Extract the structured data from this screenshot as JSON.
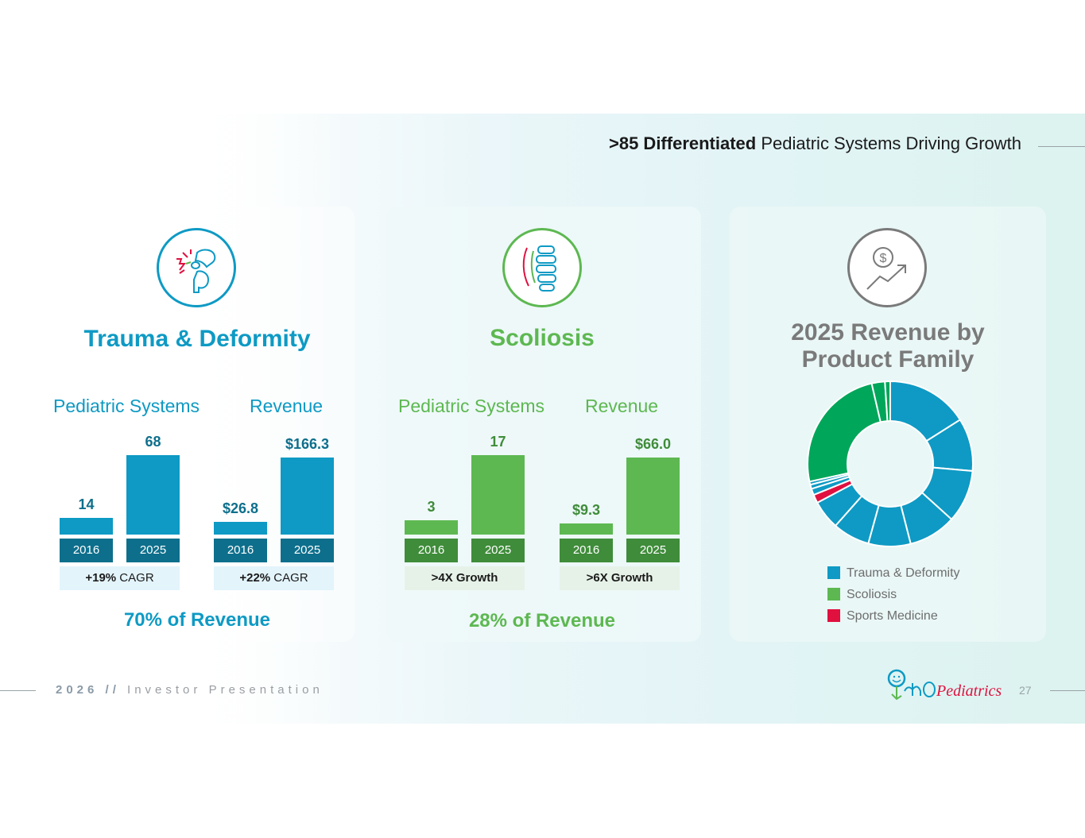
{
  "title": {
    "bold": ">85 Differentiated",
    "rest": " Pediatric Systems Driving Growth"
  },
  "colors": {
    "trauma": "#0e9ac4",
    "trauma_dark": "#0d6f8c",
    "scoliosis": "#5db851",
    "scoliosis_dark": "#3f8c3a",
    "sports": "#e0103f",
    "scoliosis_donut": "#00a65a",
    "grey": "#7a7a7a"
  },
  "trauma": {
    "title": "Trauma & Deformity",
    "icon": "broken-bone-icon",
    "systems_label": "Pediatric Systems",
    "revenue_label": "Revenue",
    "systems_tag_bold": "+19%",
    "systems_tag_rest": " CAGR",
    "revenue_tag_bold": "+22%",
    "revenue_tag_rest": " CAGR",
    "share": "70% of Revenue"
  },
  "scoliosis": {
    "title": "Scoliosis",
    "icon": "spine-icon",
    "systems_label": "Pediatric Systems",
    "revenue_label": "Revenue",
    "systems_tag_bold": ">4X Growth",
    "revenue_tag_bold": ">6X Growth",
    "share": "28% of Revenue"
  },
  "donut": {
    "icon": "dollar-growth-icon",
    "title": "2025 Revenue by Product Family",
    "legend": [
      {
        "label": "Trauma & Deformity",
        "color": "#0e9ac4"
      },
      {
        "label": "Scoliosis",
        "color": "#5db851"
      },
      {
        "label": "Sports Medicine",
        "color": "#e0103f"
      }
    ]
  },
  "chart_data": [
    {
      "type": "bar",
      "name": "trauma-systems",
      "categories": [
        "2016",
        "2025"
      ],
      "values": [
        14,
        68
      ],
      "value_labels": [
        "14",
        "68"
      ]
    },
    {
      "type": "bar",
      "name": "trauma-revenue",
      "categories": [
        "2016",
        "2025"
      ],
      "values": [
        26.8,
        166.3
      ],
      "value_labels": [
        "$26.8",
        "$166.3"
      ]
    },
    {
      "type": "bar",
      "name": "scoliosis-systems",
      "categories": [
        "2016",
        "2025"
      ],
      "values": [
        3,
        17
      ],
      "value_labels": [
        "3",
        "17"
      ]
    },
    {
      "type": "bar",
      "name": "scoliosis-revenue",
      "categories": [
        "2016",
        "2025"
      ],
      "values": [
        9.3,
        66.0
      ],
      "value_labels": [
        "$9.3",
        "$66.0"
      ]
    },
    {
      "type": "pie",
      "name": "revenue-by-product-family",
      "slices": [
        {
          "family": "Trauma & Deformity",
          "value": 15.5,
          "color": "#0e9ac4"
        },
        {
          "family": "Trauma & Deformity",
          "value": 10,
          "color": "#0e9ac4"
        },
        {
          "family": "Trauma & Deformity",
          "value": 10,
          "color": "#0e9ac4"
        },
        {
          "family": "Trauma & Deformity",
          "value": 9,
          "color": "#0e9ac4"
        },
        {
          "family": "Trauma & Deformity",
          "value": 8,
          "color": "#0e9ac4"
        },
        {
          "family": "Trauma & Deformity",
          "value": 7,
          "color": "#0e9ac4"
        },
        {
          "family": "Trauma & Deformity",
          "value": 5.5,
          "color": "#0e9ac4"
        },
        {
          "family": "Sports Medicine",
          "value": 1.6,
          "color": "#e0103f"
        },
        {
          "family": "Trauma & Deformity",
          "value": 1.2,
          "color": "#0e9ac4"
        },
        {
          "family": "Trauma & Deformity",
          "value": 0.8,
          "color": "#0e9ac4"
        },
        {
          "family": "Trauma & Deformity",
          "value": 0.6,
          "color": "#0e9ac4"
        },
        {
          "family": "Scoliosis",
          "value": 24,
          "color": "#00a65a"
        },
        {
          "family": "Scoliosis",
          "value": 2.5,
          "color": "#00a65a"
        },
        {
          "family": "Scoliosis",
          "value": 1.0,
          "color": "#00a65a"
        }
      ]
    }
  ],
  "footer": {
    "year": "2026 //",
    "text": " Investor Presentation",
    "page": "27",
    "logo_text": "OrthoPediatrics"
  }
}
